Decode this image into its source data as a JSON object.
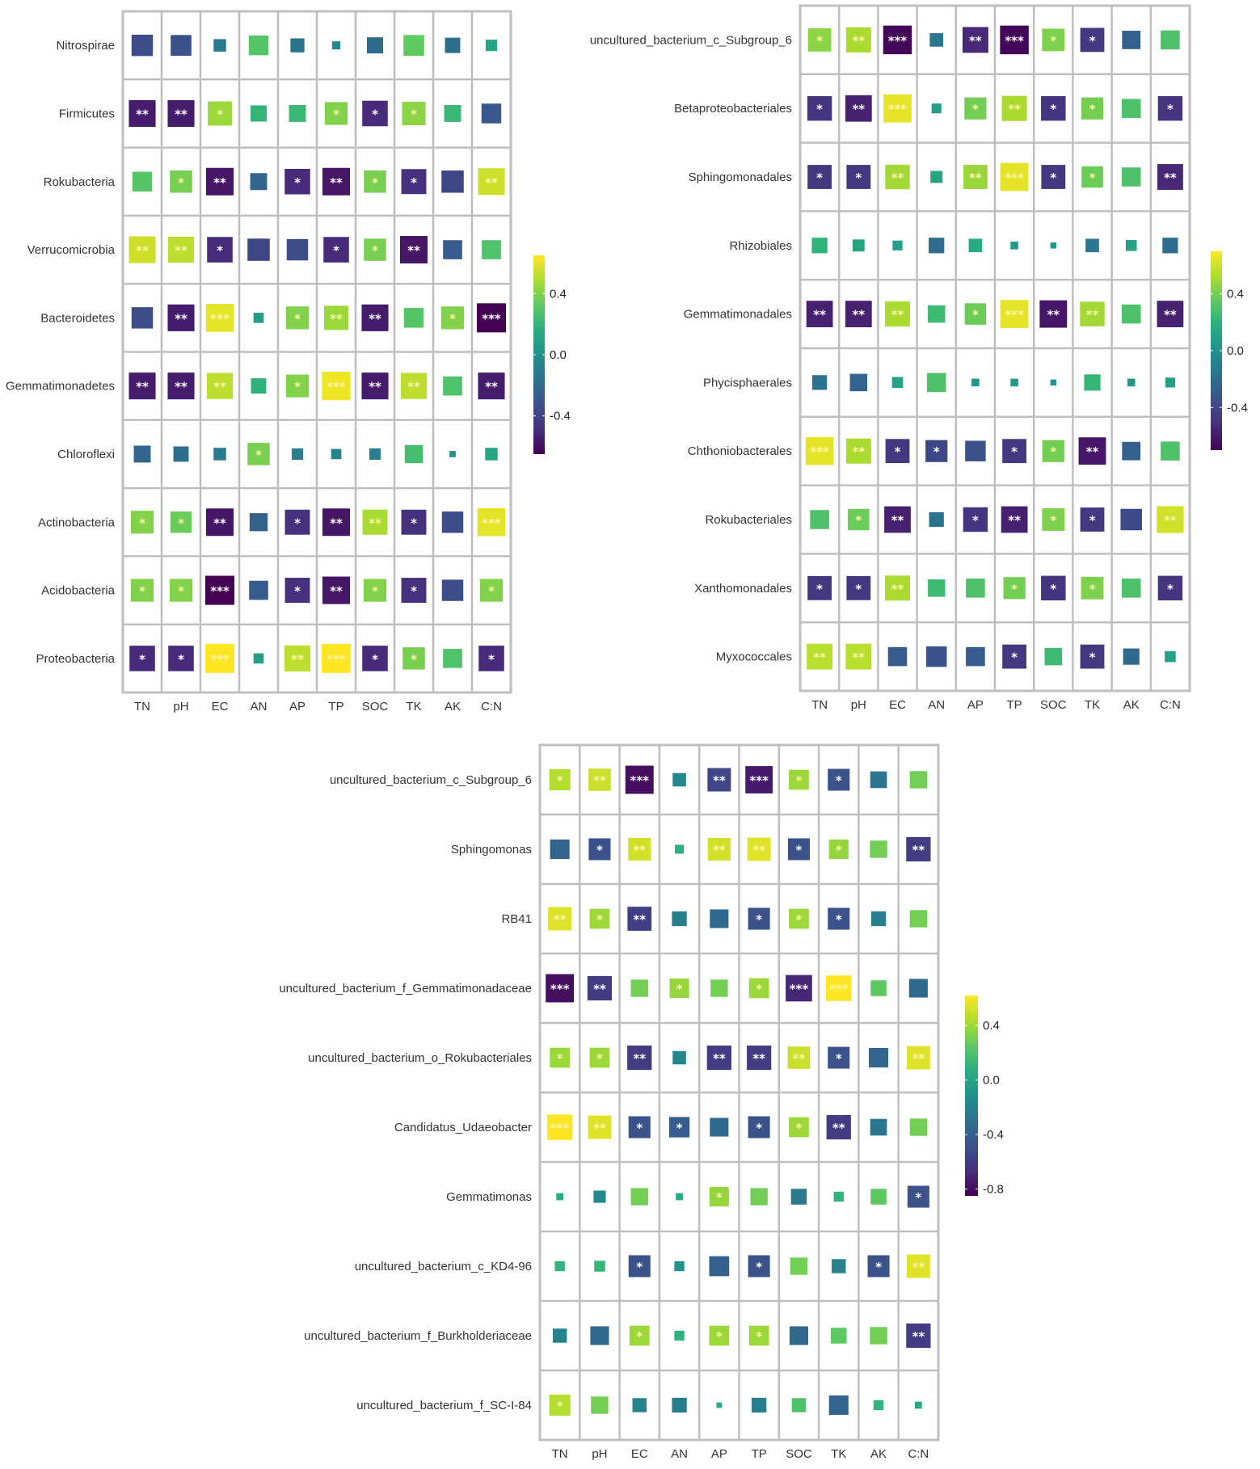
{
  "colors": {
    "grid": "#bfbfbf",
    "palette": [
      "#440154",
      "#472f7d",
      "#3b528b",
      "#2c728e",
      "#21918c",
      "#28ae80",
      "#5ec962",
      "#addc30",
      "#fde725"
    ],
    "star_on_dark": "#ffffff",
    "star_on_light": "#fff6a8"
  },
  "chart_data": [
    {
      "type": "heatmap",
      "columns": [
        "TN",
        "pH",
        "EC",
        "AN",
        "AP",
        "TP",
        "SOC",
        "TK",
        "AK",
        "C:N"
      ],
      "rows": [
        "Nitrospirae",
        "Firmicutes",
        "Rokubacteria",
        "Verrucomicrobia",
        "Bacteroidetes",
        "Gemmatimonadetes",
        "Chloroflexi",
        "Actinobacteria",
        "Acidobacteria",
        "Proteobacteria"
      ],
      "values": [
        [
          -0.35,
          -0.33,
          -0.12,
          0.3,
          -0.15,
          -0.05,
          -0.2,
          0.33,
          -0.18,
          0.1
        ],
        [
          -0.55,
          -0.55,
          0.45,
          0.2,
          0.22,
          0.4,
          -0.5,
          0.42,
          0.22,
          -0.3
        ],
        [
          0.3,
          0.38,
          -0.58,
          -0.22,
          -0.5,
          -0.58,
          0.38,
          -0.48,
          -0.38,
          0.55
        ],
        [
          0.55,
          0.52,
          -0.5,
          -0.38,
          -0.35,
          -0.5,
          0.38,
          -0.58,
          -0.28,
          0.28
        ],
        [
          -0.35,
          -0.55,
          0.6,
          0.08,
          0.4,
          0.45,
          -0.55,
          0.3,
          0.4,
          -0.65
        ],
        [
          -0.55,
          -0.55,
          0.52,
          0.18,
          0.4,
          0.62,
          -0.55,
          0.52,
          0.28,
          -0.55
        ],
        [
          -0.22,
          -0.18,
          -0.12,
          0.38,
          -0.1,
          -0.08,
          -0.1,
          0.25,
          0.03,
          0.12
        ],
        [
          0.4,
          0.35,
          -0.58,
          -0.25,
          -0.48,
          -0.58,
          0.48,
          -0.48,
          -0.35,
          0.6
        ],
        [
          0.4,
          0.4,
          -0.65,
          -0.28,
          -0.48,
          -0.58,
          0.4,
          -0.48,
          -0.35,
          0.4
        ],
        [
          -0.5,
          -0.5,
          0.65,
          0.08,
          0.52,
          0.65,
          -0.5,
          0.38,
          0.28,
          -0.5
        ]
      ],
      "significance": [
        [
          "",
          "",
          "",
          "",
          "",
          "",
          "",
          "",
          "",
          ""
        ],
        [
          "**",
          "**",
          "*",
          "",
          "",
          "*",
          "*",
          "*",
          "",
          ""
        ],
        [
          "",
          "*",
          "**",
          "",
          "*",
          "**",
          "*",
          "*",
          "",
          "**"
        ],
        [
          "**",
          "**",
          "*",
          "",
          "",
          "*",
          "*",
          "**",
          "",
          ""
        ],
        [
          "",
          "**",
          "***",
          "",
          "*",
          "**",
          "**",
          "",
          "*",
          "***"
        ],
        [
          "**",
          "**",
          "**",
          "",
          "*",
          "***",
          "**",
          "**",
          "",
          "**"
        ],
        [
          "",
          "",
          "",
          "*",
          "",
          "",
          "",
          "",
          "",
          ""
        ],
        [
          "*",
          "*",
          "**",
          "",
          "*",
          "**",
          "**",
          "*",
          "",
          "***"
        ],
        [
          "*",
          "*",
          "***",
          "",
          "*",
          "**",
          "*",
          "*",
          "",
          "*"
        ],
        [
          "*",
          "*",
          "***",
          "",
          "**",
          "***",
          "*",
          "*",
          "",
          "*"
        ]
      ],
      "colorbar": {
        "ticks": [
          0.4,
          0.0,
          -0.4
        ],
        "tick_labels": [
          "0.4",
          "0.0",
          "-0.4"
        ],
        "range": [
          -0.65,
          0.65
        ]
      }
    },
    {
      "type": "heatmap",
      "columns": [
        "TN",
        "pH",
        "EC",
        "AN",
        "AP",
        "TP",
        "SOC",
        "TK",
        "AK",
        "C:N"
      ],
      "rows": [
        "uncultured_bacterium_c_Subgroup_6",
        "Betaproteobacteriales",
        "Sphingomonadales",
        "Rhizobiales",
        "Gemmatimonadales",
        "Phycisphaerales",
        "Chthoniobacterales",
        "Rokubacteriales",
        "Xanthomonadales",
        "Myxococcales"
      ],
      "values": [
        [
          0.45,
          0.52,
          -0.68,
          -0.15,
          -0.55,
          -0.68,
          0.42,
          -0.48,
          -0.28,
          0.3
        ],
        [
          -0.5,
          -0.58,
          0.65,
          0.08,
          0.4,
          0.52,
          -0.5,
          0.4,
          0.3,
          -0.5
        ],
        [
          -0.48,
          -0.48,
          0.5,
          0.12,
          0.48,
          0.65,
          -0.48,
          0.38,
          0.3,
          -0.55
        ],
        [
          0.2,
          0.12,
          0.08,
          -0.2,
          0.15,
          0.05,
          0.03,
          -0.15,
          0.1,
          -0.2
        ],
        [
          -0.58,
          -0.58,
          0.52,
          0.25,
          0.38,
          0.65,
          -0.62,
          0.5,
          0.3,
          -0.58
        ],
        [
          -0.18,
          -0.25,
          0.1,
          0.3,
          0.05,
          0.05,
          0.03,
          0.22,
          0.05,
          0.08
        ],
        [
          0.65,
          0.52,
          -0.48,
          -0.4,
          -0.35,
          -0.48,
          0.4,
          -0.62,
          -0.28,
          0.3
        ],
        [
          0.3,
          0.38,
          -0.58,
          -0.18,
          -0.5,
          -0.58,
          0.42,
          -0.48,
          -0.38,
          0.6
        ],
        [
          -0.48,
          -0.48,
          0.52,
          0.25,
          0.3,
          0.4,
          -0.5,
          0.42,
          0.3,
          -0.5
        ],
        [
          0.55,
          0.55,
          -0.3,
          -0.35,
          -0.3,
          -0.48,
          0.25,
          -0.48,
          -0.22,
          0.1
        ]
      ],
      "significance": [
        [
          "*",
          "**",
          "***",
          "",
          "**",
          "***",
          "*",
          "*",
          "",
          ""
        ],
        [
          "*",
          "**",
          "***",
          "",
          "*",
          "**",
          "*",
          "*",
          "",
          "*"
        ],
        [
          "*",
          "*",
          "**",
          "",
          "**",
          "***",
          "*",
          "*",
          "",
          "**"
        ],
        [
          "",
          "",
          "",
          "",
          "",
          "",
          "",
          "",
          "",
          ""
        ],
        [
          "**",
          "**",
          "**",
          "",
          "*",
          "***",
          "**",
          "**",
          "",
          "**"
        ],
        [
          "",
          "",
          "",
          "",
          "",
          "",
          "",
          "",
          "",
          ""
        ],
        [
          "***",
          "**",
          "*",
          "*",
          "",
          "*",
          "*",
          "**",
          "",
          ""
        ],
        [
          "",
          "*",
          "**",
          "",
          "*",
          "**",
          "*",
          "*",
          "",
          "**"
        ],
        [
          "*",
          "*",
          "**",
          "",
          "",
          "*",
          "*",
          "*",
          "",
          "*"
        ],
        [
          "**",
          "**",
          "",
          "",
          "",
          "*",
          "",
          "*",
          "",
          ""
        ]
      ],
      "colorbar": {
        "ticks": [
          0.4,
          0.0,
          -0.4
        ],
        "tick_labels": [
          "0.4",
          "0.0",
          "-0.4"
        ],
        "range": [
          -0.7,
          0.7
        ]
      }
    },
    {
      "type": "heatmap",
      "columns": [
        "TN",
        "pH",
        "EC",
        "AN",
        "AP",
        "TP",
        "SOC",
        "TK",
        "AK",
        "C:N"
      ],
      "rows": [
        "uncultured_bacterium_c_Subgroup_6",
        "Sphingomonas",
        "RB41",
        "uncultured_bacterium_f_Gemmatimonadaceae",
        "uncultured_bacterium_o_Rokubacteriales",
        "Candidatus_Udaeobacter",
        "Gemmatimonas",
        "uncultured_bacterium_c_KD4-96",
        "uncultured_bacterium_f_Burkholderiaceae",
        "uncultured_bacterium_f_SC-I-84"
      ],
      "values": [
        [
          0.45,
          0.5,
          -0.8,
          -0.18,
          -0.55,
          -0.75,
          0.4,
          -0.48,
          -0.28,
          0.3
        ],
        [
          -0.38,
          -0.48,
          0.52,
          0.08,
          0.52,
          0.55,
          -0.48,
          0.38,
          0.3,
          -0.6
        ],
        [
          0.55,
          0.4,
          -0.58,
          -0.22,
          -0.35,
          -0.48,
          0.4,
          -0.48,
          -0.22,
          0.3
        ],
        [
          -0.8,
          -0.6,
          0.3,
          0.38,
          0.3,
          0.4,
          -0.7,
          0.65,
          0.25,
          -0.35
        ],
        [
          0.4,
          0.4,
          -0.6,
          -0.18,
          -0.6,
          -0.6,
          0.5,
          -0.48,
          -0.38,
          0.55
        ],
        [
          0.65,
          0.55,
          -0.48,
          -0.42,
          -0.35,
          -0.48,
          0.4,
          -0.6,
          -0.28,
          0.3
        ],
        [
          0.05,
          -0.15,
          0.3,
          0.05,
          0.38,
          0.3,
          -0.25,
          0.1,
          0.25,
          -0.48
        ],
        [
          0.1,
          0.12,
          -0.48,
          -0.1,
          -0.4,
          -0.48,
          0.3,
          -0.2,
          -0.48,
          0.55
        ],
        [
          -0.2,
          -0.35,
          0.4,
          0.1,
          0.4,
          0.4,
          -0.35,
          0.25,
          0.3,
          -0.6
        ],
        [
          0.45,
          0.3,
          -0.2,
          -0.22,
          0.03,
          -0.22,
          0.2,
          -0.38,
          0.1,
          0.05
        ]
      ],
      "significance": [
        [
          "*",
          "**",
          "***",
          "",
          "**",
          "***",
          "*",
          "*",
          "",
          ""
        ],
        [
          "",
          "*",
          "**",
          "",
          "**",
          "**",
          "*",
          "*",
          "",
          "**"
        ],
        [
          "**",
          "*",
          "**",
          "",
          "",
          "*",
          "*",
          "*",
          "",
          ""
        ],
        [
          "***",
          "**",
          "",
          "*",
          "",
          "*",
          "***",
          "***",
          "",
          ""
        ],
        [
          "*",
          "*",
          "**",
          "",
          "**",
          "**",
          "**",
          "*",
          "",
          "**"
        ],
        [
          "***",
          "**",
          "*",
          "*",
          "",
          "*",
          "*",
          "**",
          "",
          ""
        ],
        [
          "",
          "",
          "",
          "",
          "*",
          "",
          "",
          "",
          "",
          "*"
        ],
        [
          "",
          "",
          "*",
          "",
          "",
          "*",
          "",
          "",
          "*",
          "**"
        ],
        [
          "",
          "",
          "*",
          "",
          "*",
          "*",
          "",
          "",
          "",
          "**"
        ],
        [
          "*",
          "",
          "",
          "",
          "",
          "",
          "",
          "",
          "",
          ""
        ]
      ],
      "colorbar": {
        "ticks": [
          0.4,
          0.0,
          -0.4,
          -0.8
        ],
        "tick_labels": [
          "0.4",
          "0.0",
          "-0.4",
          "-0.8"
        ],
        "range": [
          -0.85,
          0.62
        ]
      }
    }
  ]
}
